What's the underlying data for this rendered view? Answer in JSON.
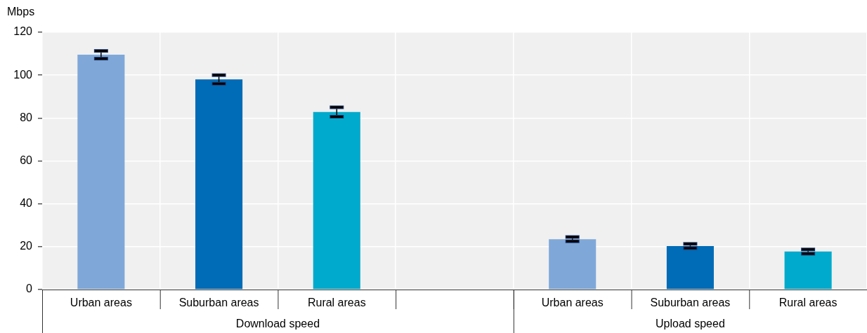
{
  "chart_data": {
    "type": "bar",
    "ylabel": "Mbps",
    "categories": [
      "Urban areas",
      "Suburban areas",
      "Rural areas",
      null,
      "Urban areas",
      "Suburban areas",
      "Rural areas"
    ],
    "values": [
      109.5,
      98,
      82.8,
      null,
      23.5,
      20.3,
      17.7
    ],
    "colors": [
      "#7fa8d9",
      "#006bb6",
      "#00aacc",
      null,
      "#7fa8d9",
      "#006bb6",
      "#00aacc"
    ],
    "errors": [
      1.8,
      2,
      2.2,
      null,
      1,
      1,
      1
    ],
    "annotations": [
      "Download speed",
      "Upload speed"
    ],
    "ylim": [
      0,
      120
    ],
    "yticks": [
      0,
      20,
      40,
      60,
      80,
      100,
      120
    ],
    "grid": true,
    "legend": false
  }
}
